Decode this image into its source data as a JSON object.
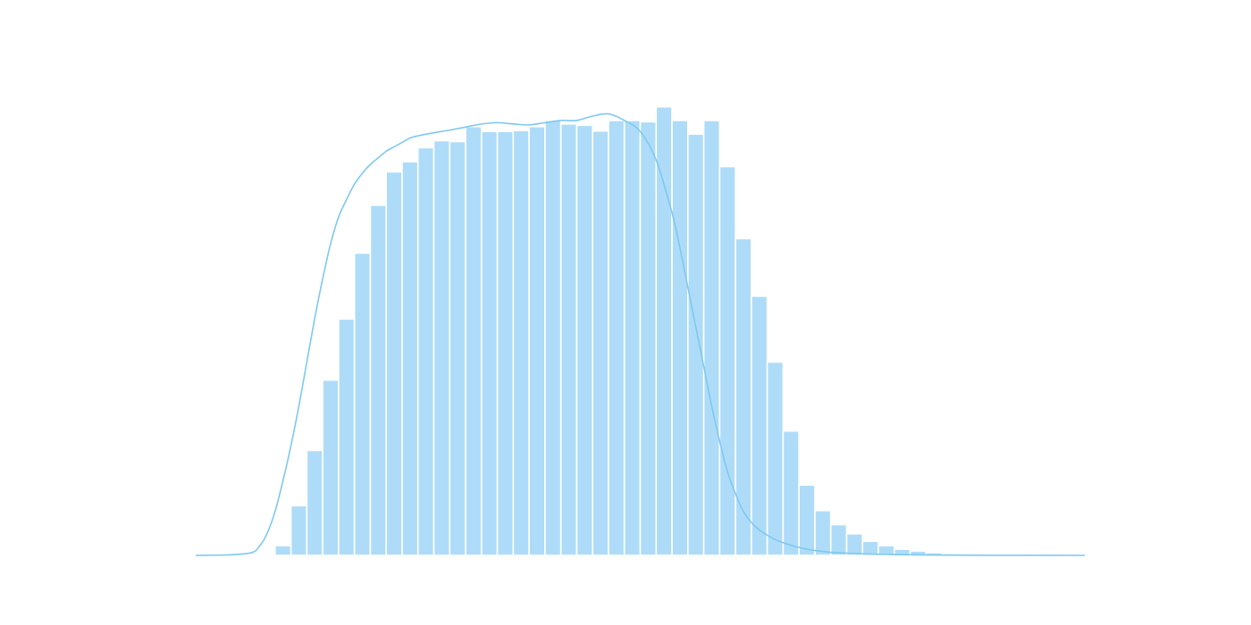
{
  "chart_data": {
    "type": "histogram",
    "grid": false,
    "legend": "none",
    "title": "",
    "xlabel": "",
    "ylabel": "",
    "colors": {
      "bar_fill": "#aedcf8",
      "bar_edge": "#ffffff",
      "kde_line": "#7ec8f0",
      "background": "#ffffff"
    },
    "xlim": [
      0,
      56
    ],
    "ylim": [
      0,
      1.0
    ],
    "bins": {
      "start": 5,
      "width": 1,
      "heights": [
        0.022,
        0.113,
        0.239,
        0.399,
        0.538,
        0.688,
        0.797,
        0.873,
        0.896,
        0.928,
        0.944,
        0.942,
        0.976,
        0.965,
        0.965,
        0.967,
        0.976,
        0.99,
        0.982,
        0.979,
        0.966,
        0.99,
        0.99,
        0.987,
        1.021,
        0.99,
        0.959,
        0.99,
        0.885,
        0.721,
        0.59,
        0.44,
        0.283,
        0.16,
        0.102,
        0.07,
        0.049,
        0.032,
        0.022,
        0.014,
        0.01,
        0.006,
        0.004,
        0.003,
        0.002,
        0.0015,
        0.001,
        0.001
      ]
    },
    "kde": {
      "x": [
        0,
        2,
        3.5,
        4,
        4.5,
        5,
        5.5,
        6,
        6.5,
        7,
        7.5,
        8,
        8.5,
        9,
        9.5,
        10,
        10.5,
        11,
        11.5,
        12,
        12.5,
        13,
        13.5,
        14,
        15,
        16,
        17,
        18,
        19,
        20,
        21,
        22,
        23,
        24,
        25,
        26,
        27,
        28,
        29,
        30,
        30.5,
        31,
        31.5,
        32,
        32.5,
        33,
        33.5,
        34,
        34.5,
        35,
        35.5,
        36,
        36.5,
        37,
        37.5,
        38,
        38.5,
        39,
        39.5,
        40,
        41,
        42,
        43,
        44,
        46,
        50,
        56
      ],
      "y": [
        0,
        0.001,
        0.006,
        0.02,
        0.05,
        0.1,
        0.17,
        0.25,
        0.34,
        0.44,
        0.54,
        0.63,
        0.71,
        0.77,
        0.81,
        0.845,
        0.87,
        0.89,
        0.905,
        0.92,
        0.93,
        0.94,
        0.95,
        0.955,
        0.962,
        0.968,
        0.975,
        0.982,
        0.985,
        0.982,
        0.98,
        0.985,
        0.99,
        0.99,
        1.0,
        1.005,
        0.99,
        0.965,
        0.9,
        0.78,
        0.7,
        0.61,
        0.52,
        0.43,
        0.34,
        0.26,
        0.19,
        0.14,
        0.1,
        0.075,
        0.058,
        0.046,
        0.036,
        0.029,
        0.023,
        0.018,
        0.014,
        0.011,
        0.009,
        0.007,
        0.005,
        0.0035,
        0.0025,
        0.0017,
        0.0009,
        0.0002,
        0
      ]
    }
  }
}
